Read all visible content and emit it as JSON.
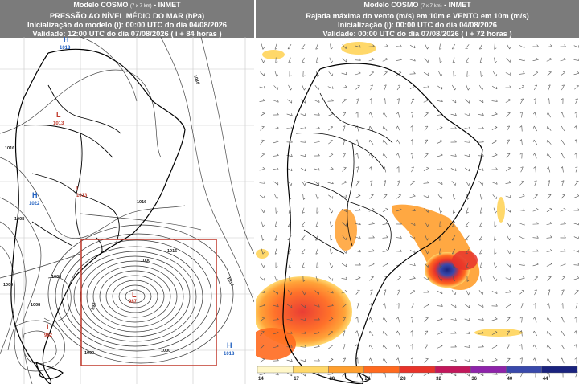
{
  "left": {
    "header": {
      "model": "Modelo COSMO",
      "resolution": "(7 x 7 km)",
      "org": "- INMET",
      "title": "PRESSÃO AO NÍVEL MÉDIO DO MAR (hPa)",
      "init": "Inicialização do modelo (i): 00:00 UTC do dia 04/08/2026",
      "valid": "Validade: 12:00 UTC do dia 07/08/2026 ( i + 84 horas )"
    },
    "systems": [
      {
        "type": "H",
        "value": "1018"
      },
      {
        "type": "L",
        "value": "1013"
      },
      {
        "type": "H",
        "value": "1022"
      },
      {
        "type": "L",
        "value": "1013"
      },
      {
        "type": "L",
        "value": "992"
      },
      {
        "type": "L",
        "value": "987"
      },
      {
        "type": "H",
        "value": "1018"
      }
    ],
    "isobar_labels": [
      "1016",
      "1016",
      "1016",
      "1016",
      "1016",
      "1008",
      "1008",
      "1000",
      "1000",
      "1000",
      "992",
      "1008",
      "1000"
    ],
    "highlight_color": "#c0392b"
  },
  "right": {
    "header": {
      "model": "Modelo COSMO",
      "resolution": "(7 x 7 km)",
      "org": "- INMET",
      "title": "Rajada máxima do vento (m/s) em 10m e VENTO em 10m (m/s)",
      "init": "Inicialização (i): 00:00 UTC do dia 04/08/2026",
      "valid": "Validade: 00:00 UTC do dia 07/08/2026 ( i + 72 horas )"
    },
    "colorbar": {
      "ticks": [
        "14",
        "17",
        "20",
        "24",
        "28",
        "32",
        "36",
        "40",
        "44"
      ],
      "colors": [
        "#fff7c8",
        "#ffd86a",
        "#ff9f2e",
        "#ff6a1f",
        "#e8332a",
        "#c2185b",
        "#8e24aa",
        "#3949ab",
        "#1a237e"
      ]
    }
  }
}
